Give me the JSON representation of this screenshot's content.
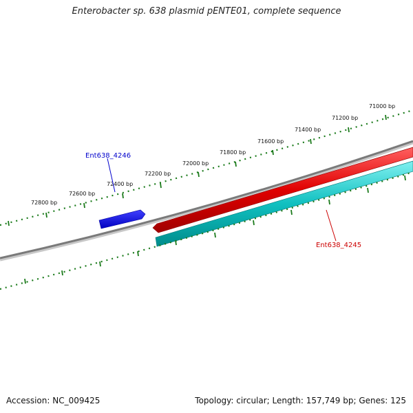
{
  "title": "Enterobacter sp. 638 plasmid pENTE01, complete sequence",
  "footer": {
    "accession": "Accession: NC_009425",
    "summary": "Topology: circular; Length: 157,749 bp; Genes: 125"
  },
  "colors": {
    "backbone": "#808080",
    "tick": "#1a7a1a",
    "forward_gene": "#0000ee",
    "reverse_gene": "#ee0000",
    "cds_track": "#00c8c8"
  },
  "ruler": {
    "labels": [
      "72800 bp",
      "72600 bp",
      "72400 bp",
      "72200 bp",
      "72000 bp",
      "71800 bp",
      "71600 bp",
      "71400 bp",
      "71200 bp",
      "71000 bp"
    ]
  },
  "genes": [
    {
      "name": "Ent638_4246",
      "strand": "forward",
      "color": "#0000cc"
    },
    {
      "name": "Ent638_4245",
      "strand": "reverse",
      "color": "#cc0000"
    }
  ]
}
